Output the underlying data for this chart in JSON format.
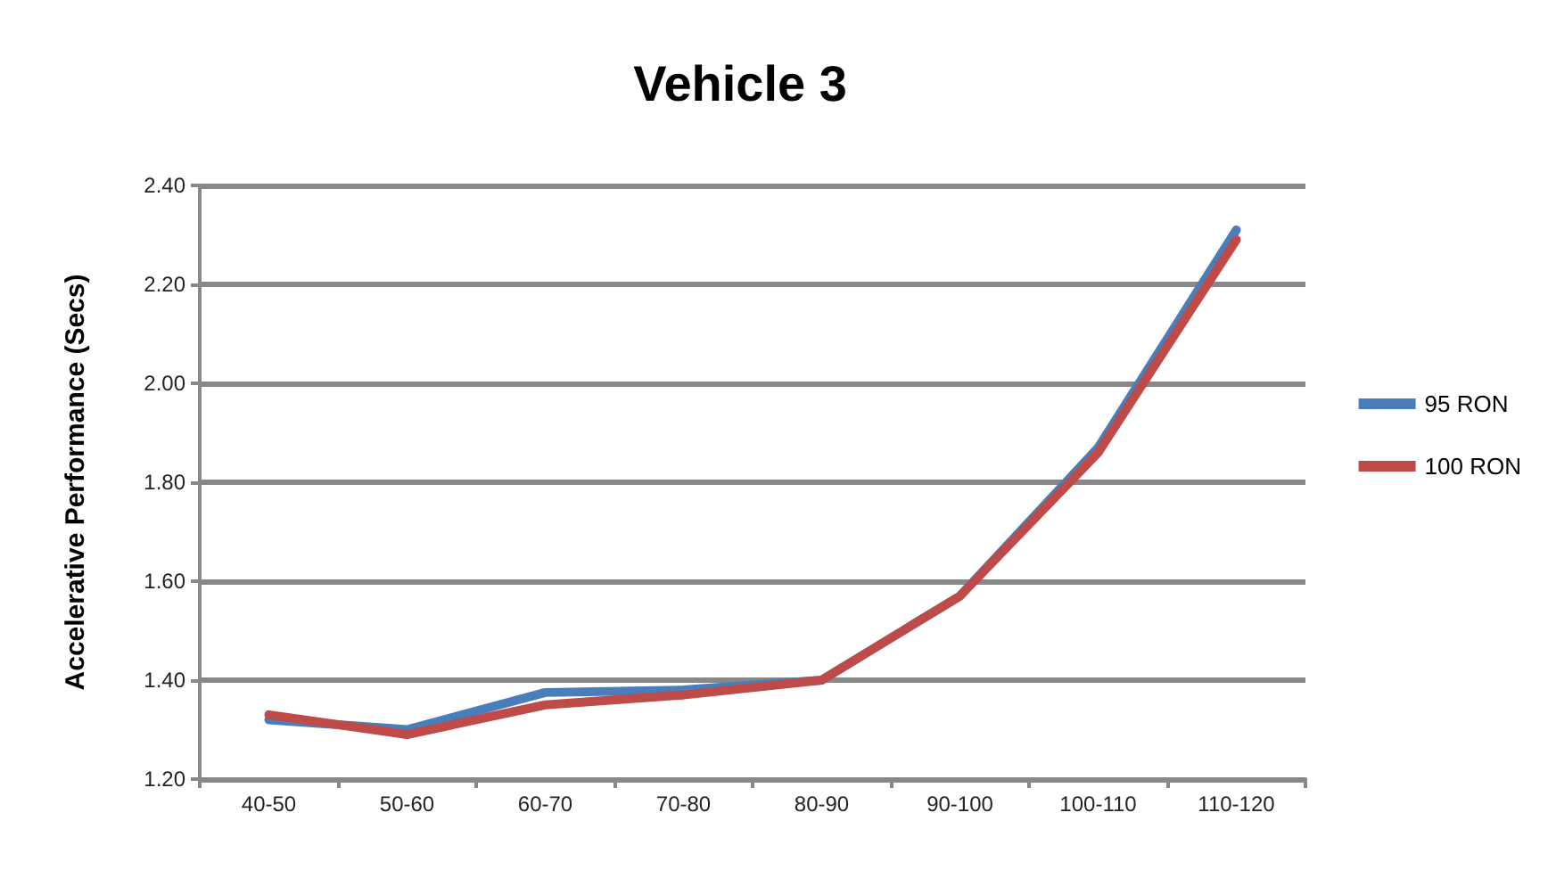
{
  "chart_data": {
    "type": "line",
    "title": "Vehicle 3",
    "ylabel": "Accelerative Performance (Secs)",
    "categories": [
      "40-50",
      "50-60",
      "60-70",
      "70-80",
      "80-90",
      "90-100",
      "100-110",
      "110-120"
    ],
    "series": [
      {
        "name": "95 RON",
        "color": "#4a7ebb",
        "values": [
          1.32,
          1.3,
          1.375,
          1.38,
          1.4,
          1.57,
          1.87,
          2.31
        ]
      },
      {
        "name": "100 RON",
        "color": "#be4b48",
        "values": [
          1.33,
          1.29,
          1.35,
          1.37,
          1.4,
          1.57,
          1.86,
          2.29
        ]
      }
    ],
    "ylim": [
      1.2,
      2.4
    ],
    "yticks": [
      {
        "value": 1.2,
        "label": "1.20"
      },
      {
        "value": 1.4,
        "label": "1.40"
      },
      {
        "value": 1.6,
        "label": "1.60"
      },
      {
        "value": 1.8,
        "label": "1.80"
      },
      {
        "value": 2.0,
        "label": "2.00"
      },
      {
        "value": 2.2,
        "label": "2.20"
      },
      {
        "value": 2.4,
        "label": "2.40"
      }
    ],
    "grid": "y",
    "legend": "right",
    "marker": "none",
    "line_style": "solid"
  }
}
